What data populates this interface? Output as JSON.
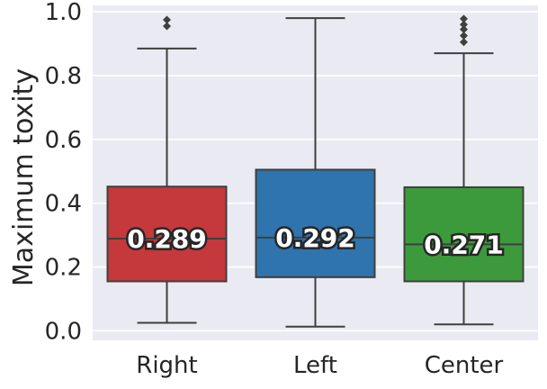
{
  "chart_data": {
    "type": "box",
    "ylabel": "Maximum toxity",
    "xlabel": "",
    "ylim": [
      -0.03,
      1.02
    ],
    "yticks": [
      0.0,
      0.2,
      0.4,
      0.6,
      0.8,
      1.0
    ],
    "ytick_labels": [
      "0.0",
      "0.2",
      "0.4",
      "0.6",
      "0.8",
      "1.0"
    ],
    "grid": true,
    "categories": [
      "Right",
      "Left",
      "Center"
    ],
    "boxes": [
      {
        "category": "Right",
        "color": "#c5383b",
        "whisker_low": 0.025,
        "q1": 0.155,
        "median": 0.289,
        "q3": 0.452,
        "whisker_high": 0.885,
        "outliers": [
          0.955,
          0.975
        ],
        "median_label": "0.289"
      },
      {
        "category": "Left",
        "color": "#2f74ad",
        "whisker_low": 0.013,
        "q1": 0.168,
        "median": 0.292,
        "q3": 0.505,
        "whisker_high": 0.98,
        "outliers": [],
        "median_label": "0.292"
      },
      {
        "category": "Center",
        "color": "#3c9a3c",
        "whisker_low": 0.02,
        "q1": 0.155,
        "median": 0.271,
        "q3": 0.45,
        "whisker_high": 0.87,
        "outliers": [
          0.905,
          0.925,
          0.945,
          0.96,
          0.978
        ],
        "median_label": "0.271"
      }
    ]
  }
}
